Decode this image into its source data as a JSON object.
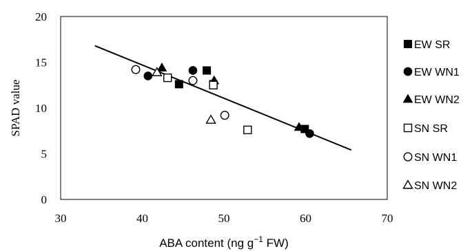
{
  "chart_data": {
    "type": "scatter",
    "xlabel": "ABA content (ng g",
    "xlabel_sup": "−1",
    "xlabel_tail": " FW)",
    "ylabel": "SPAD value",
    "xlim": [
      30,
      70
    ],
    "ylim": [
      0,
      20
    ],
    "xticks": [
      "30",
      "40",
      "50",
      "60",
      "70"
    ],
    "yticks": [
      "0",
      "5",
      "10",
      "15",
      "20"
    ],
    "grid": false,
    "legend_position": "right",
    "trendline": {
      "x": [
        34.2,
        65.6
      ],
      "y": [
        16.8,
        5.4
      ]
    },
    "series": [
      {
        "name": "EW SR",
        "marker": "square-filled",
        "points": [
          [
            44.5,
            12.6
          ],
          [
            47.9,
            14.1
          ],
          [
            48.7,
            12.6
          ],
          [
            59.9,
            7.7
          ]
        ]
      },
      {
        "name": "EW WN1",
        "marker": "circle-filled",
        "points": [
          [
            40.7,
            13.5
          ],
          [
            46.2,
            14.1
          ],
          [
            60.5,
            7.2
          ]
        ]
      },
      {
        "name": "EW WN2",
        "marker": "triangle-filled",
        "points": [
          [
            42.4,
            14.4
          ],
          [
            48.8,
            13.0
          ],
          [
            59.2,
            7.9
          ]
        ]
      },
      {
        "name": "SN SR",
        "marker": "square-open",
        "points": [
          [
            43.1,
            13.3
          ],
          [
            48.7,
            12.5
          ],
          [
            52.9,
            7.6
          ]
        ]
      },
      {
        "name": "SN WN1",
        "marker": "circle-open",
        "points": [
          [
            39.2,
            14.2
          ],
          [
            46.2,
            13.0
          ],
          [
            50.1,
            9.2
          ]
        ]
      },
      {
        "name": "SN WN2",
        "marker": "triangle-open",
        "points": [
          [
            41.8,
            13.9
          ],
          [
            48.4,
            8.7
          ]
        ]
      }
    ]
  }
}
